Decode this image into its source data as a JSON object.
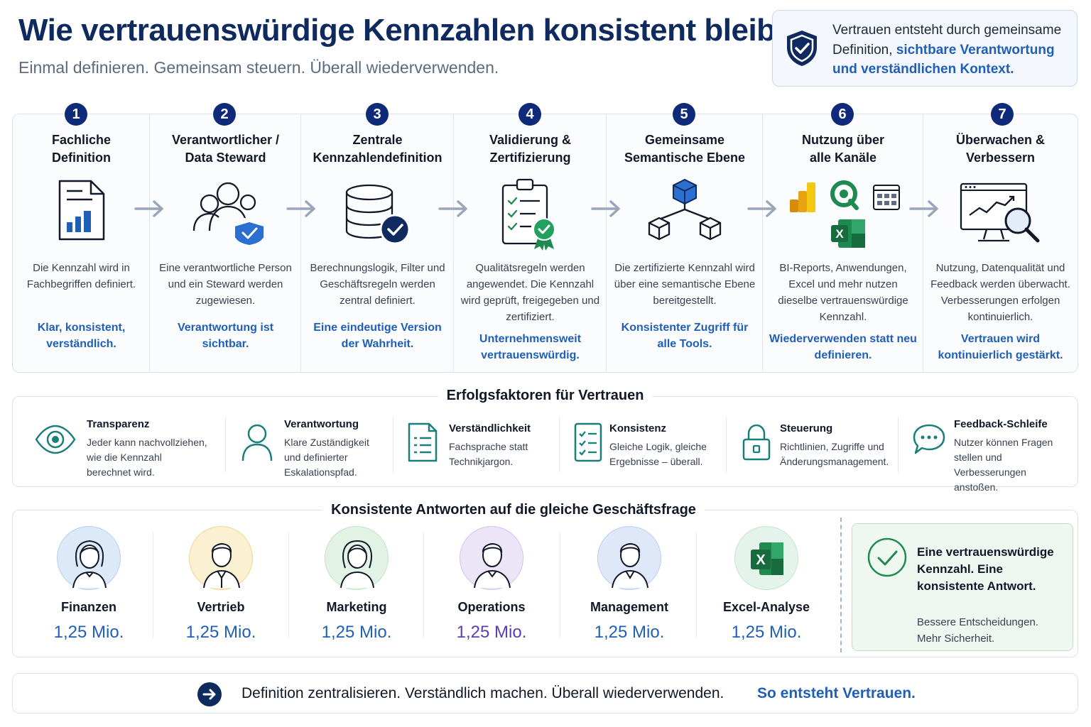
{
  "header": {
    "title": "Wie vertrauenswürdige Kennzahlen konsistent bleiben",
    "subtitle": "Einmal definieren. Gemeinsam steuern. Überall wiederverwenden."
  },
  "trust_box": {
    "icon": "shield-check-icon",
    "text_plain": "Vertrauen entsteht durch gemeinsame Definition,",
    "text_accent": "sichtbare Verantwortung und verständlichen Kontext."
  },
  "steps": [
    {
      "num": "1",
      "title_1": "Fachliche",
      "title_2": "Definition",
      "icon": "document-chart-icon",
      "desc": "Die Kennzahl wird in Fachbegriffen definiert.",
      "tag": "Klar, konsistent, verständlich."
    },
    {
      "num": "2",
      "title_1": "Verantwortlicher /",
      "title_2": "Data Steward",
      "icon": "people-shield-icon",
      "desc": "Eine verantwortliche Person und ein Steward werden zugewiesen.",
      "tag": "Verantwortung ist sichtbar."
    },
    {
      "num": "3",
      "title_1": "Zentrale",
      "title_2": "Kennzahlendefinition",
      "icon": "database-check-icon",
      "desc": "Berechnungslogik, Filter und Geschäftsregeln werden zentral definiert.",
      "tag": "Eine eindeutige Version der Wahrheit."
    },
    {
      "num": "4",
      "title_1": "Validierung &",
      "title_2": "Zertifizierung",
      "icon": "clipboard-certificate-icon",
      "desc": "Qualitätsregeln werden angewendet. Die Kennzahl wird geprüft, freigegeben und zertifiziert.",
      "tag": "Unternehmensweit vertrauenswürdig."
    },
    {
      "num": "5",
      "title_1": "Gemeinsame",
      "title_2": "Semantische Ebene",
      "icon": "cube-hierarchy-icon",
      "desc": "Die zertifizierte Kennzahl wird über eine semantische Ebene bereitgestellt.",
      "tag": "Konsistenter Zugriff für alle Tools."
    },
    {
      "num": "6",
      "title_1": "Nutzung über",
      "title_2": "alle Kanäle",
      "icon": "bi-tools-icon",
      "desc": "BI-Reports, Anwendungen, Excel und mehr nutzen dieselbe vertrauenswürdige Kennzahl.",
      "tag": "Wiederverwenden statt neu definieren."
    },
    {
      "num": "7",
      "title_1": "Überwachen &",
      "title_2": "Verbessern",
      "icon": "monitor-magnifier-icon",
      "desc": "Nutzung, Datenqualität und Feedback werden überwacht. Verbesserungen erfolgen kontinuierlich.",
      "tag": "Vertrauen wird kontinuierlich gestärkt."
    }
  ],
  "factors": {
    "title": "Erfolgsfaktoren für Vertrauen",
    "items": [
      {
        "name": "Transparenz",
        "desc_1": "Jeder kann nachvollziehen,",
        "desc_2": "wie die Kennzahl",
        "desc_3": "berechnet wird.",
        "icon": "eye-icon"
      },
      {
        "name": "Verantwortung",
        "desc_1": "Klare Zuständigkeit",
        "desc_2": "und definierter",
        "desc_3": "Eskalationspfad.",
        "icon": "person-icon"
      },
      {
        "name": "Verständlichkeit",
        "desc_1": "Fachsprache statt",
        "desc_2": "Technikjargon.",
        "desc_3": "",
        "icon": "document-icon"
      },
      {
        "name": "Konsistenz",
        "desc_1": "Gleiche Logik, gleiche",
        "desc_2": "Ergebnisse – überall.",
        "desc_3": "",
        "icon": "checklist-icon"
      },
      {
        "name": "Steuerung",
        "desc_1": "Richtlinien, Zugriffe und",
        "desc_2": "Änderungsmanagement.",
        "desc_3": "",
        "icon": "lock-icon"
      },
      {
        "name": "Feedback-Schleife",
        "desc_1": "Nutzer können Fragen",
        "desc_2": "stellen und Verbesserungen",
        "desc_3": "anstoßen.",
        "icon": "chat-bubble-icon"
      }
    ]
  },
  "answers": {
    "title": "Konsistente Antworten auf die gleiche Geschäftsfrage",
    "departments": [
      {
        "name": "Finanzen",
        "value": "1,25 Mio.",
        "icon": "woman-avatar-icon",
        "color": "#dce9f8"
      },
      {
        "name": "Vertrieb",
        "value": "1,25 Mio.",
        "icon": "man-avatar-icon",
        "color": "#fbf0d2"
      },
      {
        "name": "Marketing",
        "value": "1,25 Mio.",
        "icon": "woman-avatar-icon",
        "color": "#e2f3e6"
      },
      {
        "name": "Operations",
        "value": "1,25 Mio.",
        "icon": "man-avatar-icon",
        "color": "#ece5f7"
      },
      {
        "name": "Management",
        "value": "1,25 Mio.",
        "icon": "man-avatar-icon",
        "color": "#dfe8f8"
      },
      {
        "name": "Excel-Analyse",
        "value": "1,25 Mio.",
        "icon": "excel-icon",
        "color": "#e4f4ea"
      }
    ],
    "result_main": "Eine vertrauenswürdige Kennzahl. Eine konsistente Antwort.",
    "result_sub_1": "Bessere Entscheidungen.",
    "result_sub_2": "Mehr Sicherheit."
  },
  "footer": {
    "text": "Definition zentralisieren. Verständlich machen. Überall wiederverwenden.",
    "accent": "So entsteht Vertrauen."
  },
  "colors": {
    "navy": "#0f2a5f",
    "accent_blue": "#1f5fb8",
    "green": "#1e8a4f",
    "operations_value": "#5b3fb0"
  }
}
